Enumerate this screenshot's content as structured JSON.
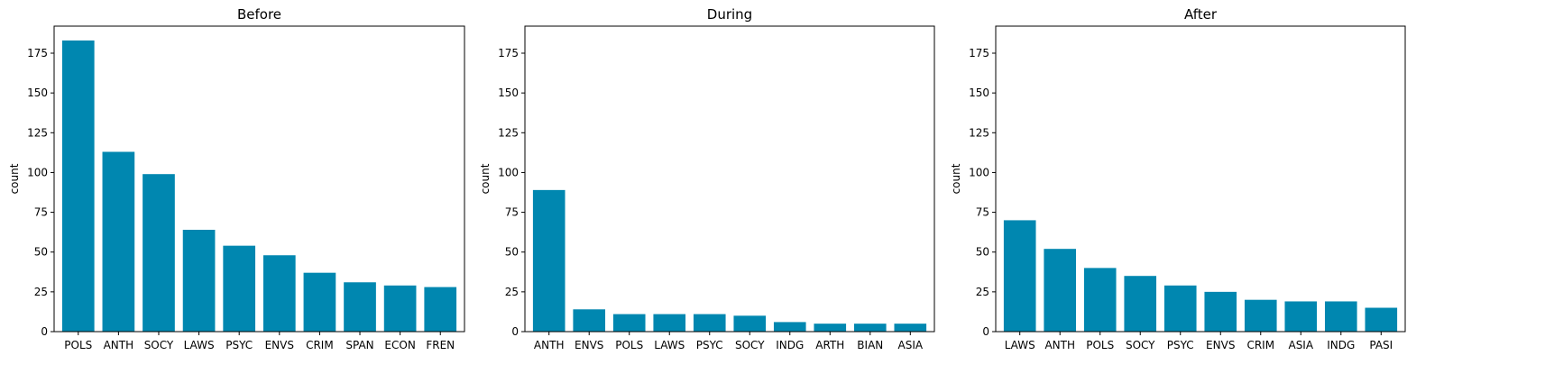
{
  "chart_data": [
    {
      "type": "bar",
      "title": "Before",
      "ylabel": "count",
      "xlabel": "",
      "ylim": [
        0,
        192
      ],
      "yticks": [
        0,
        25,
        50,
        75,
        100,
        125,
        150,
        175
      ],
      "categories": [
        "POLS",
        "ANTH",
        "SOCY",
        "LAWS",
        "PSYC",
        "ENVS",
        "CRIM",
        "SPAN",
        "ECON",
        "FREN"
      ],
      "values": [
        183,
        113,
        99,
        64,
        54,
        48,
        37,
        31,
        29,
        28
      ],
      "color": "#0087b0"
    },
    {
      "type": "bar",
      "title": "During",
      "ylabel": "count",
      "xlabel": "",
      "ylim": [
        0,
        192
      ],
      "yticks": [
        0,
        25,
        50,
        75,
        100,
        125,
        150,
        175
      ],
      "categories": [
        "ANTH",
        "ENVS",
        "POLS",
        "LAWS",
        "PSYC",
        "SOCY",
        "INDG",
        "ARTH",
        "BIAN",
        "ASIA"
      ],
      "values": [
        89,
        14,
        11,
        11,
        11,
        10,
        6,
        5,
        5,
        5
      ],
      "color": "#0087b0"
    },
    {
      "type": "bar",
      "title": "After",
      "ylabel": "count",
      "xlabel": "",
      "ylim": [
        0,
        192
      ],
      "yticks": [
        0,
        25,
        50,
        75,
        100,
        125,
        150,
        175
      ],
      "categories": [
        "LAWS",
        "ANTH",
        "POLS",
        "SOCY",
        "PSYC",
        "ENVS",
        "CRIM",
        "ASIA",
        "INDG",
        "PASI"
      ],
      "values": [
        70,
        52,
        40,
        35,
        29,
        25,
        20,
        19,
        19,
        15
      ],
      "color": "#0087b0"
    }
  ]
}
